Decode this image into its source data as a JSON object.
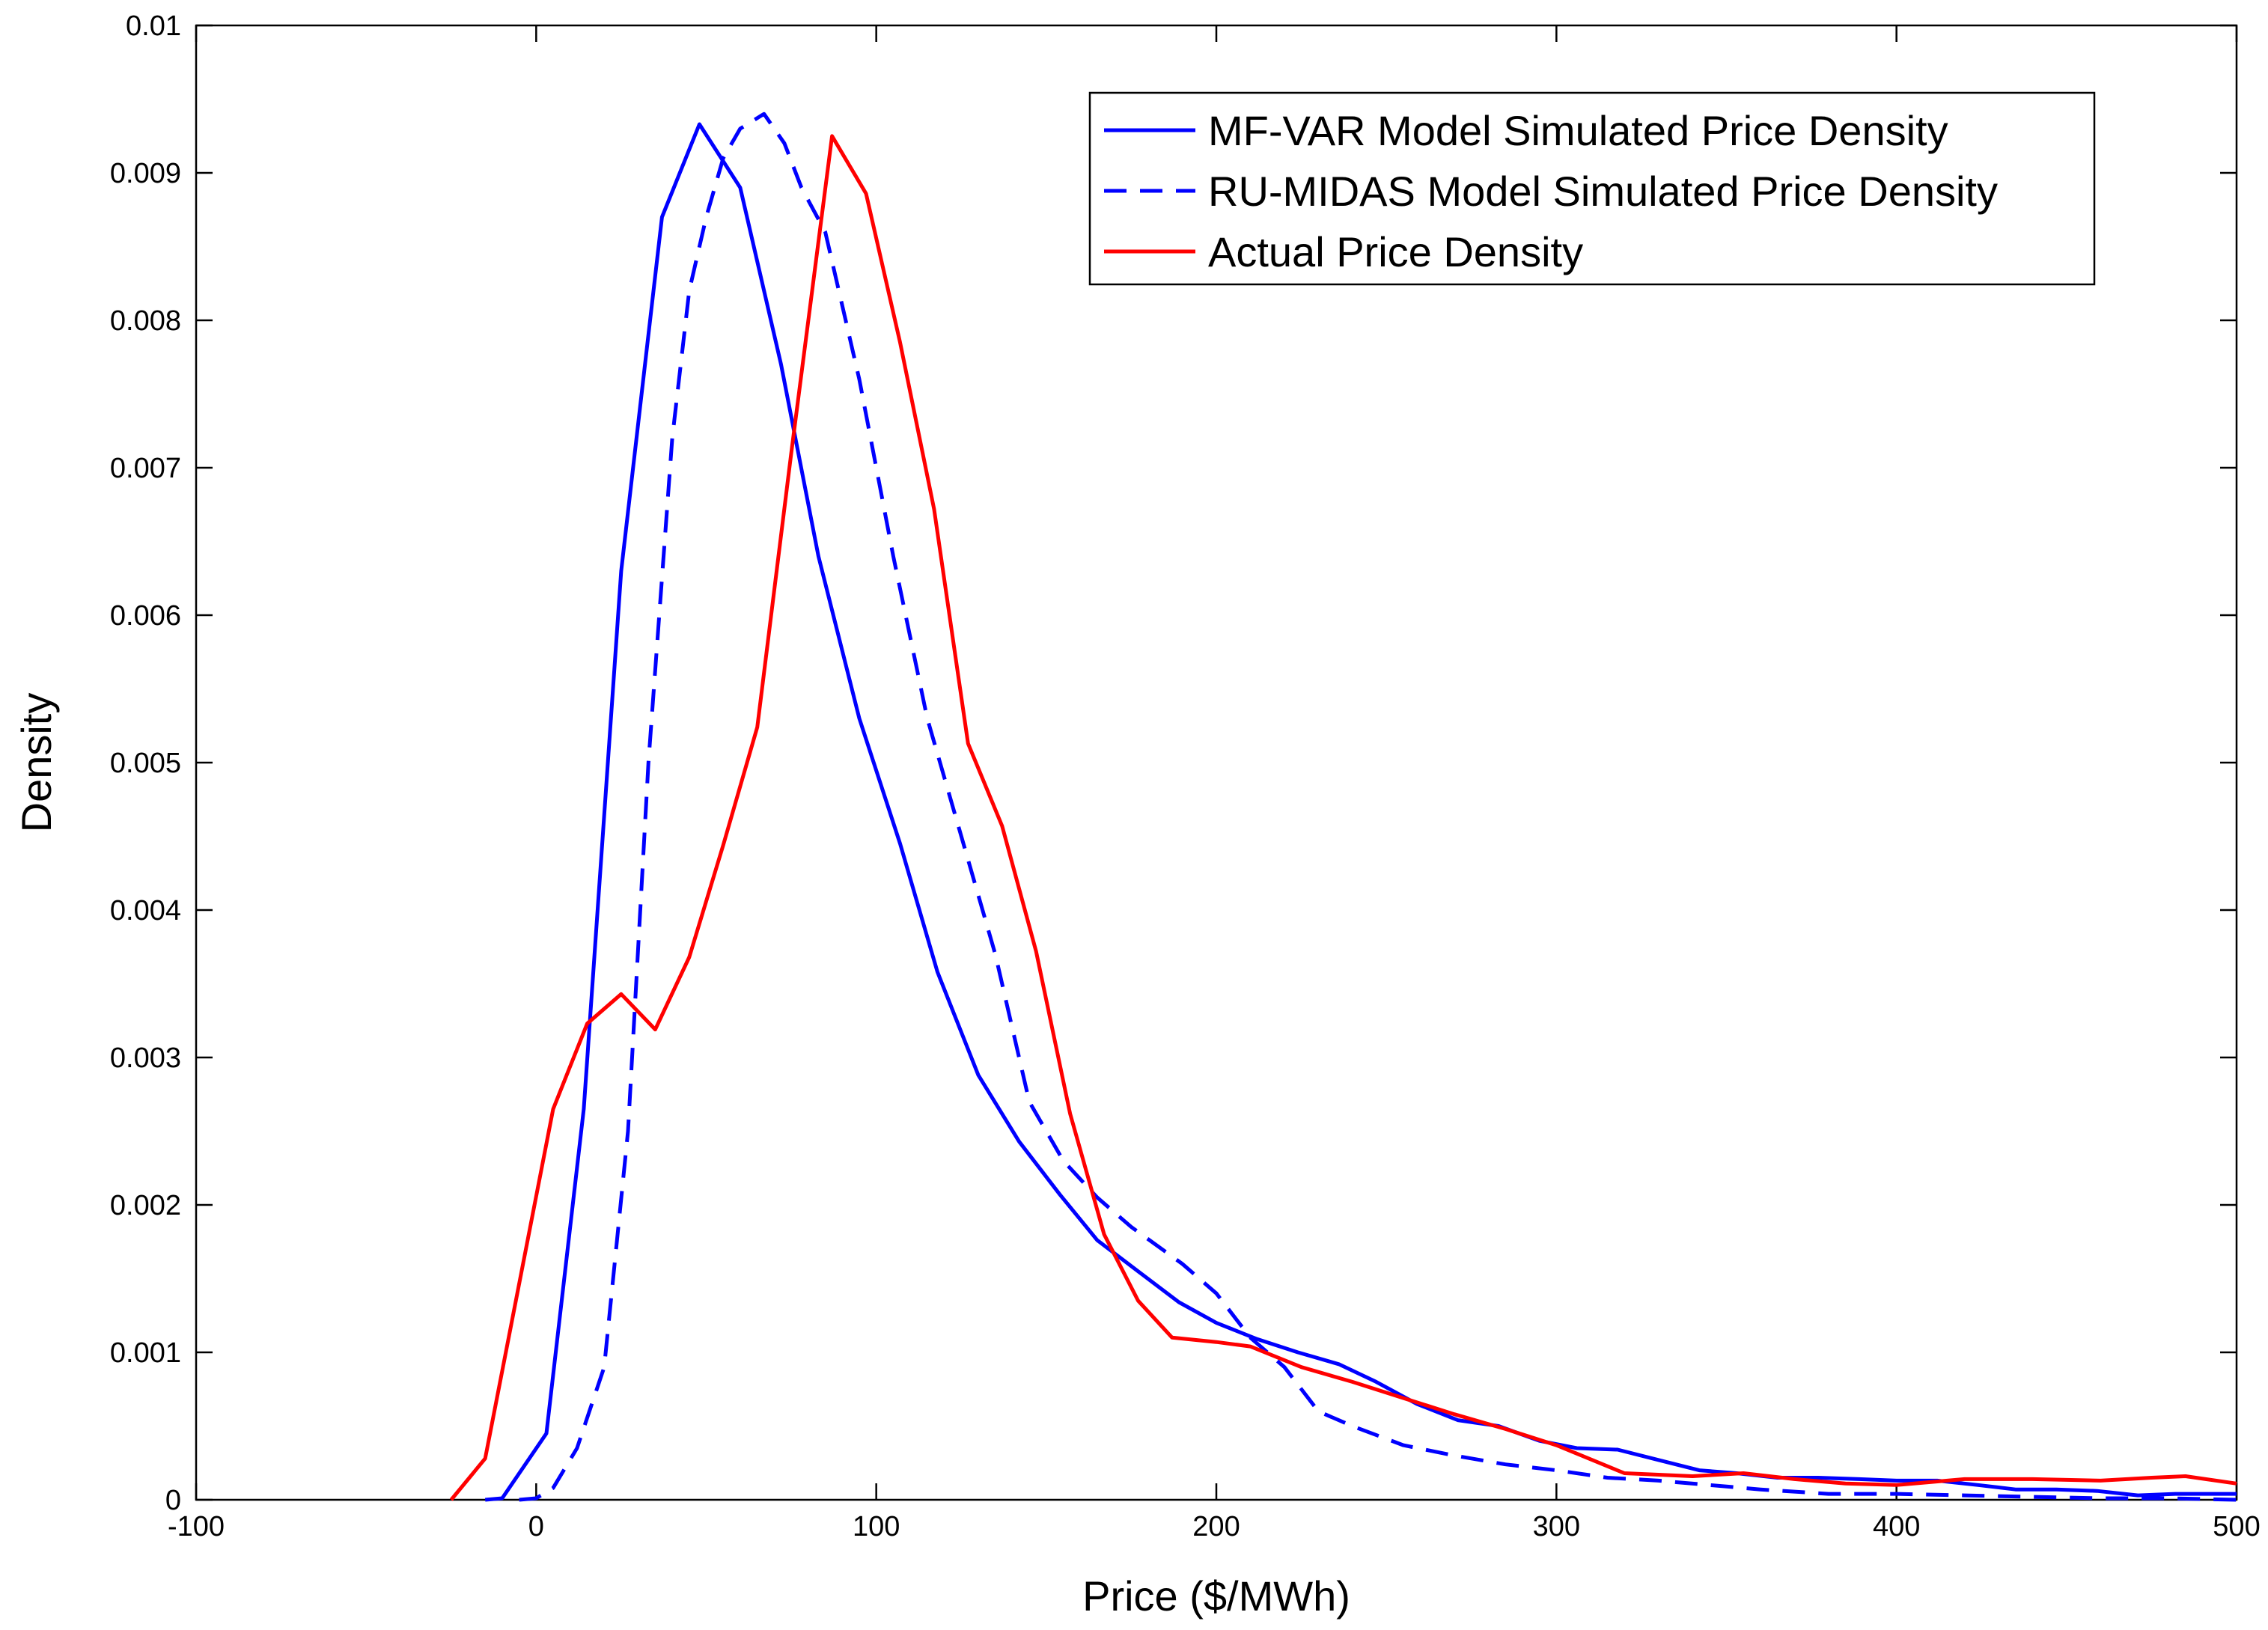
{
  "chart_data": {
    "type": "line",
    "title": "",
    "xlabel": "Price ($/MWh)",
    "ylabel": "Density",
    "xlim": [
      -100,
      500
    ],
    "ylim": [
      0,
      0.01
    ],
    "xticks": [
      -100,
      0,
      100,
      200,
      300,
      400,
      500
    ],
    "xtick_labels": [
      "-100",
      "0",
      "100",
      "200",
      "300",
      "400",
      "500"
    ],
    "yticks": [
      0,
      0.001,
      0.002,
      0.003,
      0.004,
      0.005,
      0.006,
      0.007,
      0.008,
      0.009,
      0.01
    ],
    "ytick_labels": [
      "0",
      "0.001",
      "0.002",
      "0.003",
      "0.004",
      "0.005",
      "0.006",
      "0.007",
      "0.008",
      "0.009",
      "0.01"
    ],
    "grid": false,
    "legend_position": "top-right",
    "series": [
      {
        "name": "MF-VAR Model Simulated Price Density",
        "color": "#0000ff",
        "style": "solid",
        "x": [
          -15,
          -10,
          3,
          14,
          25,
          37,
          48,
          60,
          72,
          83,
          95,
          107,
          118,
          130,
          142,
          154,
          165,
          177,
          189,
          200,
          212,
          224,
          236,
          247,
          259,
          271,
          283,
          295,
          306,
          318,
          330,
          342,
          353,
          365,
          377,
          389,
          400,
          412,
          424,
          435,
          447,
          459,
          471,
          482,
          500
        ],
        "y": [
          0.0,
          1e-05,
          0.00045,
          0.00265,
          0.0063,
          0.0087,
          0.00933,
          0.0089,
          0.0077,
          0.0064,
          0.0053,
          0.00445,
          0.00358,
          0.00288,
          0.00243,
          0.00207,
          0.00176,
          0.00155,
          0.00134,
          0.0012,
          0.00109,
          0.001,
          0.00092,
          0.0008,
          0.00065,
          0.00054,
          0.0005,
          0.0004,
          0.00035,
          0.00034,
          0.00027,
          0.0002,
          0.00018,
          0.00015,
          0.00015,
          0.00014,
          0.00013,
          0.00013,
          0.0001,
          7e-05,
          7e-05,
          6e-05,
          3e-05,
          4e-05,
          4e-05
        ]
      },
      {
        "name": "RU-MIDAS Model Simulated Price Density",
        "color": "#0000ff",
        "style": "dashed",
        "x": [
          -5,
          0,
          5,
          12,
          20,
          27,
          33,
          40,
          45,
          50,
          55,
          60,
          67,
          73,
          78,
          85,
          95,
          105,
          115,
          125,
          135,
          145,
          155,
          165,
          175,
          190,
          200,
          210,
          220,
          230,
          240,
          255,
          270,
          285,
          300,
          315,
          330,
          345,
          360,
          380,
          400,
          420,
          440,
          460,
          480,
          500
        ],
        "y": [
          0.0,
          1e-05,
          8e-05,
          0.00035,
          0.0009,
          0.0025,
          0.005,
          0.0072,
          0.0082,
          0.0087,
          0.0091,
          0.0093,
          0.0094,
          0.0092,
          0.0089,
          0.0086,
          0.0076,
          0.0064,
          0.0053,
          0.0045,
          0.0037,
          0.0027,
          0.0023,
          0.00205,
          0.00185,
          0.0016,
          0.0014,
          0.0011,
          0.0009,
          0.0006,
          0.0005,
          0.00037,
          0.0003,
          0.00024,
          0.0002,
          0.00015,
          0.00013,
          0.0001,
          7e-05,
          4e-05,
          4e-05,
          3e-05,
          2e-05,
          1e-05,
          1e-05,
          0.0
        ]
      },
      {
        "name": "Actual Price Density",
        "color": "#ff0000",
        "style": "solid",
        "x": [
          -25,
          -15,
          5,
          15,
          25,
          35,
          45,
          55,
          65,
          75,
          87,
          97,
          107,
          117,
          127,
          137,
          147,
          157,
          167,
          177,
          187,
          200,
          210,
          225,
          240,
          255,
          270,
          285,
          300,
          320,
          340,
          355,
          370,
          385,
          400,
          420,
          440,
          460,
          475,
          485,
          500
        ],
        "y": [
          0.0,
          0.00028,
          0.00265,
          0.00323,
          0.00343,
          0.00319,
          0.00368,
          0.00444,
          0.00524,
          0.0071,
          0.00925,
          0.00886,
          0.00785,
          0.00672,
          0.00513,
          0.00457,
          0.00372,
          0.00262,
          0.0018,
          0.00135,
          0.0011,
          0.00107,
          0.00104,
          0.0009,
          0.0008,
          0.00069,
          0.00058,
          0.00048,
          0.00037,
          0.00018,
          0.00016,
          0.00018,
          0.00014,
          0.00011,
          0.0001,
          0.00014,
          0.00014,
          0.00013,
          0.00015,
          0.00016,
          0.00011
        ]
      }
    ]
  }
}
